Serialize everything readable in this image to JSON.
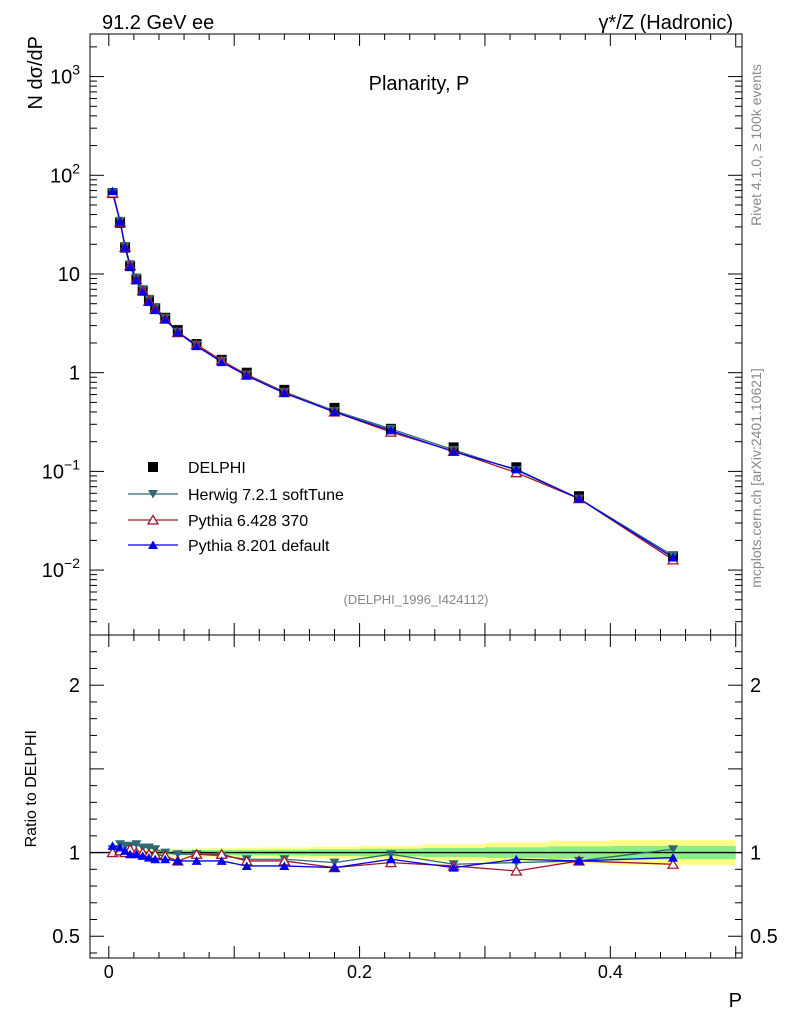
{
  "header": {
    "left": "91.2 GeV ee",
    "right": "γ*/Z (Hadronic)"
  },
  "side_labels": {
    "rivet": "Rivet 4.1.0, ≥ 100k events",
    "mcplots": "mcplots.cern.ch [arXiv:2401.10621]"
  },
  "analysis_id": "(DELPHI_1996_I424112)",
  "colors": {
    "delphi": "#000000",
    "herwig": "#2f6a72",
    "pythia6": "#a0172b",
    "pythia8": "#0000ee",
    "band_yellow": "#ffff88",
    "band_green": "#88ee88"
  },
  "chart_data": [
    {
      "type": "scatter",
      "title": "Planarity, P",
      "ylabel": "N  dσ/dP",
      "xlabel": "P",
      "yscale": "log",
      "xlim": [
        -0.015,
        0.505
      ],
      "ylim": [
        0.0022,
        2700
      ],
      "yticks": [
        {
          "v": 1000,
          "b": "10",
          "e": "3"
        },
        {
          "v": 100,
          "b": "10",
          "e": "2"
        },
        {
          "v": 10,
          "b": "10",
          "e": ""
        },
        {
          "v": 1,
          "b": "1",
          "e": ""
        },
        {
          "v": 0.1,
          "b": "10",
          "e": "−1"
        },
        {
          "v": 0.01,
          "b": "10",
          "e": "−2"
        }
      ],
      "x": [
        0.003,
        0.009,
        0.013,
        0.017,
        0.022,
        0.027,
        0.032,
        0.037,
        0.045,
        0.055,
        0.07,
        0.09,
        0.11,
        0.14,
        0.18,
        0.225,
        0.275,
        0.325,
        0.375,
        0.45
      ],
      "series": [
        {
          "name": "DELPHI",
          "marker": "square",
          "values": [
            66,
            33,
            18.5,
            12,
            8.8,
            6.8,
            5.4,
            4.5,
            3.6,
            2.7,
            1.95,
            1.35,
            1.0,
            0.67,
            0.44,
            0.27,
            0.175,
            0.11,
            0.056,
            0.0138
          ]
        },
        {
          "name": "Herwig 7.2.1 softTune",
          "marker": "triangle-down",
          "values": [
            67,
            34.5,
            19.2,
            12.5,
            9.2,
            7.0,
            5.6,
            4.6,
            3.6,
            2.6,
            1.92,
            1.32,
            0.96,
            0.64,
            0.41,
            0.27,
            0.165,
            0.103,
            0.053,
            0.014
          ]
        },
        {
          "name": "Pythia 6.428 370",
          "marker": "triangle-open",
          "values": [
            66,
            33.5,
            18.6,
            12.2,
            8.8,
            6.8,
            5.3,
            4.4,
            3.5,
            2.55,
            1.92,
            1.33,
            0.95,
            0.63,
            0.4,
            0.25,
            0.16,
            0.097,
            0.053,
            0.0127
          ]
        },
        {
          "name": "Pythia 8.201 default",
          "marker": "triangle-up",
          "values": [
            69,
            34,
            18.6,
            11.9,
            8.7,
            6.6,
            5.2,
            4.3,
            3.45,
            2.55,
            1.86,
            1.28,
            0.93,
            0.62,
            0.4,
            0.26,
            0.158,
            0.105,
            0.053,
            0.0134
          ]
        }
      ],
      "legend": [
        "DELPHI",
        "Herwig 7.2.1 softTune",
        "Pythia 6.428 370",
        "Pythia 8.201 default"
      ]
    },
    {
      "type": "line",
      "ylabel": "Ratio to DELPHI",
      "xlabel": "P",
      "ylim": [
        0.37,
        2.3
      ],
      "yticks": [
        2,
        1,
        0.5
      ],
      "xticks": [
        0,
        0.2,
        0.4
      ],
      "band_edges": [
        0,
        0.006,
        0.011,
        0.015,
        0.019,
        0.025,
        0.03,
        0.035,
        0.04,
        0.05,
        0.06,
        0.08,
        0.1,
        0.12,
        0.16,
        0.2,
        0.25,
        0.3,
        0.35,
        0.4,
        0.5
      ],
      "band_yellow": [
        0.015,
        0.015,
        0.016,
        0.017,
        0.018,
        0.018,
        0.019,
        0.02,
        0.021,
        0.022,
        0.024,
        0.026,
        0.028,
        0.03,
        0.035,
        0.04,
        0.05,
        0.06,
        0.07,
        0.075
      ],
      "band_green": [
        0.008,
        0.008,
        0.009,
        0.009,
        0.01,
        0.01,
        0.01,
        0.011,
        0.012,
        0.013,
        0.014,
        0.015,
        0.016,
        0.017,
        0.02,
        0.023,
        0.027,
        0.032,
        0.037,
        0.04
      ],
      "series": [
        {
          "name": "Herwig 7.2.1 softTune",
          "values": [
            1.02,
            1.05,
            1.04,
            1.04,
            1.05,
            1.03,
            1.03,
            1.02,
            1.0,
            0.99,
            0.99,
            0.98,
            0.96,
            0.96,
            0.94,
            0.99,
            0.93,
            0.94,
            0.95,
            1.02
          ]
        },
        {
          "name": "Pythia 6.428 370",
          "values": [
            1.0,
            1.01,
            1.0,
            1.02,
            1.0,
            1.0,
            0.99,
            0.99,
            0.98,
            0.95,
            0.99,
            0.99,
            0.95,
            0.95,
            0.91,
            0.94,
            0.92,
            0.89,
            0.95,
            0.93
          ]
        },
        {
          "name": "Pythia 8.201 default",
          "values": [
            1.04,
            1.03,
            1.01,
            0.99,
            0.99,
            0.98,
            0.97,
            0.96,
            0.96,
            0.95,
            0.95,
            0.95,
            0.92,
            0.92,
            0.91,
            0.96,
            0.91,
            0.96,
            0.95,
            0.97
          ]
        }
      ]
    }
  ]
}
